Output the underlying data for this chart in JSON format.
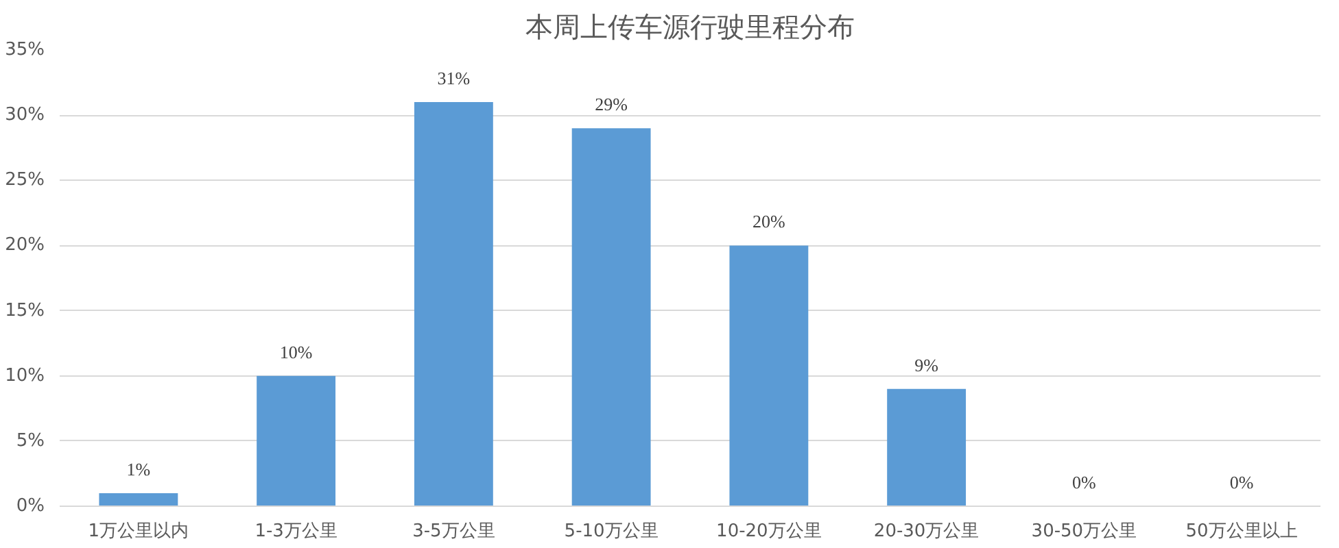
{
  "chart_data": {
    "type": "bar",
    "title": "本周上传车源行驶里程分布",
    "categories": [
      "1万公里以内",
      "1-3万公里",
      "3-5万公里",
      "5-10万公里",
      "10-20万公里",
      "20-30万公里",
      "30-50万公里",
      "50万公里以上"
    ],
    "values": [
      1,
      10,
      31,
      29,
      20,
      9,
      0,
      0
    ],
    "value_labels": [
      "1%",
      "10%",
      "31%",
      "29%",
      "20%",
      "9%",
      "0%",
      "0%"
    ],
    "color": "#5b9bd5",
    "ylim": [
      0,
      35
    ],
    "yticks": [
      {
        "value": 0,
        "label": "0%"
      },
      {
        "value": 5,
        "label": "5%"
      },
      {
        "value": 10,
        "label": "10%"
      },
      {
        "value": 15,
        "label": "15%"
      },
      {
        "value": 20,
        "label": "20%"
      },
      {
        "value": 25,
        "label": "25%"
      },
      {
        "value": 30,
        "label": "30%"
      },
      {
        "value": 35,
        "label": "35%"
      }
    ],
    "grid": "y"
  }
}
